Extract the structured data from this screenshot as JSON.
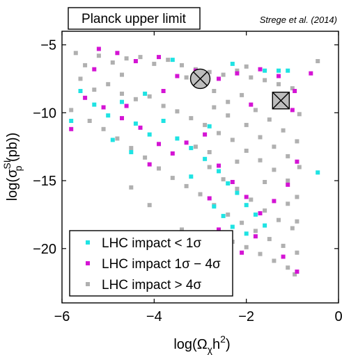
{
  "chart_data": {
    "type": "scatter",
    "title": "Planck upper limit",
    "annotation": "Strege et al. (2014)",
    "xlabel": {
      "main": "log(Ω",
      "sub": "χ",
      "rest": "h",
      "sup": "2",
      "end": ")"
    },
    "ylabel": {
      "main": "log(σ",
      "sup": "SI",
      "sub": "p",
      "rest": " (pb))"
    },
    "xlim": [
      -6,
      0
    ],
    "ylim": [
      -24,
      -4
    ],
    "xticks": [
      {
        "value": -6,
        "label": "−6"
      },
      {
        "value": -4,
        "label": "−4"
      },
      {
        "value": -2,
        "label": "−2"
      },
      {
        "value": 0,
        "label": "0"
      }
    ],
    "yticks": [
      {
        "value": -5,
        "label": "−5"
      },
      {
        "value": -10,
        "label": "−10"
      },
      {
        "value": -15,
        "label": "−15"
      },
      {
        "value": -20,
        "label": "−20"
      }
    ],
    "grid": false,
    "legend_position": "bottom-left",
    "series": [
      {
        "name": "LHC impact > 4σ",
        "color": "#b0b0b0",
        "points": [
          [
            -5.7,
            -5.6
          ],
          [
            -5.5,
            -6.5
          ],
          [
            -5.2,
            -5.8
          ],
          [
            -4.9,
            -6.3
          ],
          [
            -4.6,
            -6.0
          ],
          [
            -4.3,
            -5.9
          ],
          [
            -4.0,
            -6.4
          ],
          [
            -3.7,
            -6.1
          ],
          [
            -3.4,
            -6.5
          ],
          [
            -3.1,
            -6.8
          ],
          [
            -2.8,
            -7.0
          ],
          [
            -2.5,
            -7.2
          ],
          [
            -2.2,
            -6.9
          ],
          [
            -1.9,
            -7.4
          ],
          [
            -1.6,
            -7.6
          ],
          [
            -1.3,
            -7.9
          ],
          [
            -1.0,
            -8.2
          ],
          [
            -5.6,
            -7.5
          ],
          [
            -5.3,
            -8.3
          ],
          [
            -5.0,
            -7.9
          ],
          [
            -4.7,
            -8.6
          ],
          [
            -4.4,
            -9.0
          ],
          [
            -4.1,
            -8.8
          ],
          [
            -3.8,
            -9.5
          ],
          [
            -3.5,
            -9.9
          ],
          [
            -3.2,
            -10.4
          ],
          [
            -2.9,
            -10.9
          ],
          [
            -2.6,
            -11.5
          ],
          [
            -2.3,
            -12.0
          ],
          [
            -2.0,
            -12.8
          ],
          [
            -1.7,
            -13.5
          ],
          [
            -1.4,
            -14.2
          ],
          [
            -1.1,
            -15.0
          ],
          [
            -0.9,
            -16.2
          ],
          [
            -5.8,
            -9.8
          ],
          [
            -5.4,
            -10.6
          ],
          [
            -5.1,
            -11.2
          ],
          [
            -4.8,
            -11.9
          ],
          [
            -4.5,
            -12.6
          ],
          [
            -4.2,
            -13.3
          ],
          [
            -3.9,
            -14.1
          ],
          [
            -3.6,
            -14.8
          ],
          [
            -3.3,
            -15.4
          ],
          [
            -3.0,
            -16.0
          ],
          [
            -2.7,
            -16.8
          ],
          [
            -2.4,
            -17.5
          ],
          [
            -2.1,
            -18.1
          ],
          [
            -1.8,
            -18.7
          ],
          [
            -1.5,
            -19.3
          ],
          [
            -1.2,
            -19.8
          ],
          [
            -0.9,
            -20.3
          ],
          [
            -2.6,
            -18.9
          ],
          [
            -2.3,
            -19.5
          ],
          [
            -2.0,
            -19.9
          ],
          [
            -1.7,
            -20.4
          ],
          [
            -1.4,
            -20.9
          ],
          [
            -1.1,
            -21.4
          ],
          [
            -0.95,
            -21.9
          ],
          [
            -2.8,
            -14.0
          ],
          [
            -2.5,
            -14.9
          ],
          [
            -2.2,
            -15.6
          ],
          [
            -1.9,
            -16.4
          ],
          [
            -1.6,
            -17.2
          ],
          [
            -1.3,
            -17.9
          ],
          [
            -1.0,
            -18.5
          ],
          [
            -2.7,
            -9.6
          ],
          [
            -2.4,
            -9.2
          ],
          [
            -2.1,
            -8.7
          ],
          [
            -1.8,
            -9.8
          ],
          [
            -1.5,
            -10.5
          ],
          [
            -1.2,
            -11.3
          ],
          [
            -0.9,
            -12.1
          ],
          [
            -2.0,
            -10.9
          ],
          [
            -1.7,
            -11.8
          ],
          [
            -1.4,
            -12.5
          ],
          [
            -1.1,
            -13.2
          ],
          [
            -0.85,
            -14.0
          ],
          [
            -3.0,
            -8.0
          ],
          [
            -2.7,
            -8.4
          ],
          [
            -2.4,
            -10.2
          ],
          [
            -4.5,
            -15.5
          ],
          [
            -4.1,
            -16.8
          ],
          [
            -3.4,
            -18.6
          ],
          [
            -4.7,
            -7.2
          ],
          [
            -3.3,
            -7.4
          ],
          [
            -2.0,
            -6.6
          ],
          [
            -1.2,
            -9.3
          ],
          [
            -0.85,
            -10.1
          ],
          [
            -3.1,
            -12.5
          ],
          [
            -2.8,
            -12.9
          ],
          [
            -2.2,
            -13.6
          ],
          [
            -1.6,
            -15.1
          ],
          [
            -1.1,
            -16.7
          ],
          [
            -0.9,
            -18.0
          ],
          [
            -0.45,
            -6.2
          ]
        ]
      },
      {
        "name": "LHC impact 1σ − 4σ",
        "color": "#d414d4",
        "points": [
          [
            -5.2,
            -5.3
          ],
          [
            -4.8,
            -5.6
          ],
          [
            -4.4,
            -6.2
          ],
          [
            -3.9,
            -5.9
          ],
          [
            -3.5,
            -7.3
          ],
          [
            -3.1,
            -6.9
          ],
          [
            -2.6,
            -7.5
          ],
          [
            -2.2,
            -7.1
          ],
          [
            -1.7,
            -6.8
          ],
          [
            -1.3,
            -7.3
          ],
          [
            -0.95,
            -8.4
          ],
          [
            -0.6,
            -7.1
          ],
          [
            -5.5,
            -8.9
          ],
          [
            -5.1,
            -9.6
          ],
          [
            -4.7,
            -10.4
          ],
          [
            -4.3,
            -11.1
          ],
          [
            -3.9,
            -12.3
          ],
          [
            -3.6,
            -13.0
          ],
          [
            -3.3,
            -12.2
          ],
          [
            -2.9,
            -11.6
          ],
          [
            -2.6,
            -13.9
          ],
          [
            -2.3,
            -15.1
          ],
          [
            -2.0,
            -16.2
          ],
          [
            -1.7,
            -17.4
          ],
          [
            -1.4,
            -16.5
          ],
          [
            -1.1,
            -15.3
          ],
          [
            -0.9,
            -13.6
          ],
          [
            -2.6,
            -18.6
          ],
          [
            -2.4,
            -19.8
          ],
          [
            -2.1,
            -20.3
          ],
          [
            -1.8,
            -19.1
          ],
          [
            -1.2,
            -20.6
          ],
          [
            -0.9,
            -21.7
          ],
          [
            -2.7,
            -21.4
          ],
          [
            -4.6,
            -9.5
          ],
          [
            -5.8,
            -11.2
          ],
          [
            -4.1,
            -13.8
          ],
          [
            -1.9,
            -9.4
          ],
          [
            -1.0,
            -9.8
          ],
          [
            -3.8,
            -8.4
          ],
          [
            -5.3,
            -6.8
          ],
          [
            -2.8,
            -16.3
          ]
        ]
      },
      {
        "name": "LHC impact < 1σ",
        "color": "#1fe3e3",
        "points": [
          [
            -5.6,
            -8.4
          ],
          [
            -5.3,
            -9.4
          ],
          [
            -5.0,
            -10.2
          ],
          [
            -4.7,
            -9.2
          ],
          [
            -4.4,
            -10.8
          ],
          [
            -4.1,
            -11.6
          ],
          [
            -3.8,
            -10.6
          ],
          [
            -3.5,
            -11.9
          ],
          [
            -3.2,
            -12.6
          ],
          [
            -2.9,
            -13.4
          ],
          [
            -2.6,
            -14.3
          ],
          [
            -2.4,
            -15.2
          ],
          [
            -2.2,
            -15.9
          ],
          [
            -2.0,
            -16.8
          ],
          [
            -1.8,
            -17.5
          ],
          [
            -1.6,
            -18.3
          ],
          [
            -2.7,
            -16.9
          ],
          [
            -2.5,
            -17.6
          ],
          [
            -2.3,
            -18.4
          ],
          [
            -2.0,
            -18.9
          ],
          [
            -2.7,
            -19.3
          ],
          [
            -2.5,
            -20.8
          ],
          [
            -5.8,
            -10.6
          ],
          [
            -4.9,
            -12.0
          ],
          [
            -4.5,
            -12.9
          ],
          [
            -3.6,
            -6.1
          ],
          [
            -2.3,
            -6.4
          ],
          [
            -1.6,
            -6.9
          ],
          [
            -1.3,
            -6.9
          ],
          [
            -1.1,
            -6.9
          ],
          [
            -0.45,
            -14.4
          ],
          [
            -3.2,
            -14.7
          ],
          [
            -4.2,
            -8.6
          ],
          [
            -2.8,
            -11.0
          ]
        ]
      }
    ],
    "markers": [
      {
        "name": "circle-x",
        "x": -3.0,
        "y": -7.5
      },
      {
        "name": "square-x",
        "x": -1.25,
        "y": -9.1
      }
    ],
    "legend": [
      {
        "label": "LHC impact < 1σ",
        "color": "#1fe3e3"
      },
      {
        "label": "LHC impact 1σ − 4σ",
        "color": "#d414d4"
      },
      {
        "label": "LHC impact > 4σ",
        "color": "#b0b0b0"
      }
    ]
  }
}
